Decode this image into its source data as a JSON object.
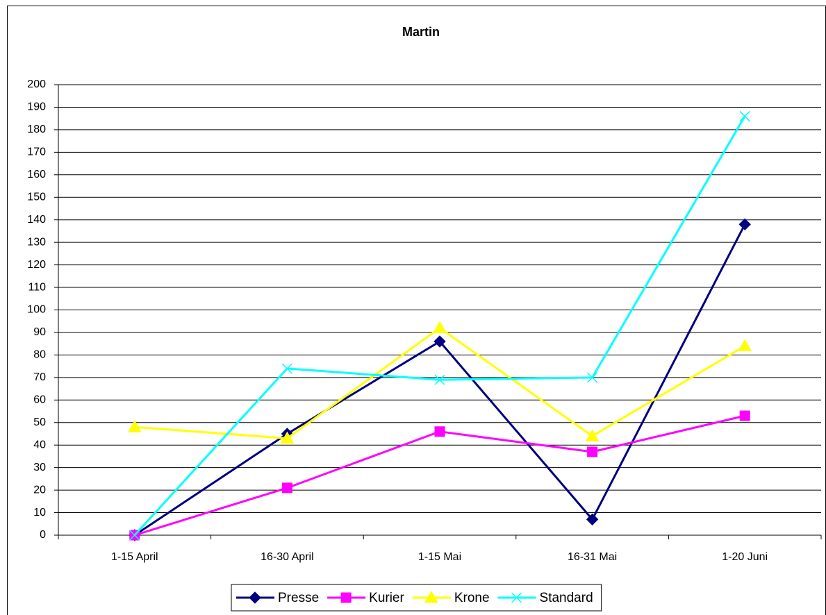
{
  "chart_data": {
    "type": "line",
    "title": "Martin",
    "categories": [
      "1-15 April",
      "16-30 April",
      "1-15 Mai",
      "16-31 Mai",
      "1-20 Juni"
    ],
    "series": [
      {
        "name": "Presse",
        "color": "#000080",
        "marker": "diamond",
        "values": [
          0,
          45,
          86,
          7,
          138
        ]
      },
      {
        "name": "Kurier",
        "color": "#ff00ff",
        "marker": "square",
        "values": [
          0,
          21,
          46,
          37,
          53
        ]
      },
      {
        "name": "Krone",
        "color": "#ffff00",
        "marker": "triangle",
        "values": [
          48,
          43,
          92,
          44,
          84
        ]
      },
      {
        "name": "Standard",
        "color": "#00ffff",
        "marker": "x",
        "values": [
          0,
          74,
          69,
          70,
          186
        ]
      }
    ],
    "ylim": [
      0,
      200
    ],
    "yticks": [
      0,
      10,
      20,
      30,
      40,
      50,
      60,
      70,
      80,
      90,
      100,
      110,
      120,
      130,
      140,
      150,
      160,
      170,
      180,
      190,
      200
    ],
    "grid": true,
    "legend": "bottom"
  }
}
